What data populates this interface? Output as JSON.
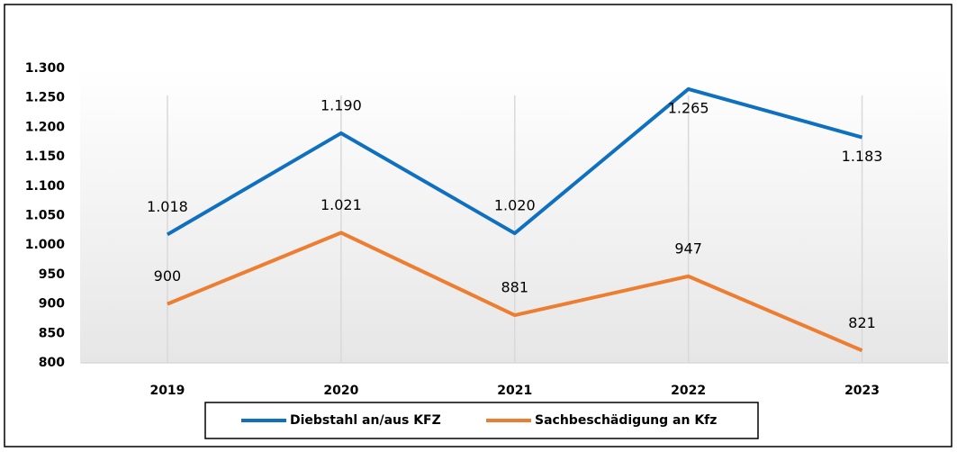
{
  "chart_data": {
    "type": "line",
    "categories": [
      "2019",
      "2020",
      "2021",
      "2022",
      "2023"
    ],
    "series": [
      {
        "name": "Diebstahl an/aus KFZ",
        "color": "#0f70c0",
        "values": [
          1018,
          1190,
          1020,
          1265,
          1183
        ],
        "value_labels": [
          "1.018",
          "1.190",
          "1.020",
          "1.265",
          "1.183"
        ]
      },
      {
        "name": "Sachbeschädigung an Kfz",
        "color": "#ed7d31",
        "values": [
          900,
          1021,
          881,
          947,
          821
        ],
        "value_labels": [
          "900",
          "1.021",
          "881",
          "947",
          "821"
        ]
      }
    ],
    "ylim": [
      800,
      1300
    ],
    "yticks": [
      800,
      850,
      900,
      950,
      {
        "value": 1000,
        "label": "1.000"
      },
      {
        "value": 1050,
        "label": "1.050"
      },
      {
        "value": 1100,
        "label": "1.100"
      },
      {
        "value": 1150,
        "label": "1.150"
      },
      {
        "value": 1200,
        "label": "1.200"
      },
      {
        "value": 1250,
        "label": "1.250"
      },
      {
        "value": 1300,
        "label": "1.300"
      }
    ],
    "grid": true
  }
}
